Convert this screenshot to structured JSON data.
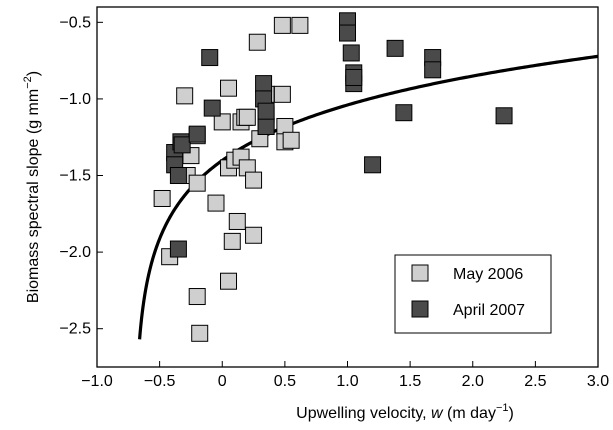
{
  "chart_data": {
    "type": "scatter",
    "xlabel": {
      "pre": "Upwelling velocity, ",
      "var": "w",
      "post": " (m day",
      "sup": "−1",
      "close": ")"
    },
    "ylabel": {
      "pre": "Biomass spectral slope (g mm",
      "sup": "−2",
      "close": ")"
    },
    "xlim": [
      -1.0,
      3.0
    ],
    "ylim": [
      -2.75,
      -0.4
    ],
    "x_ticks": [
      -1.0,
      -0.5,
      0.0,
      0.5,
      1.0,
      1.5,
      2.0,
      2.5,
      3.0
    ],
    "x_tick_labels": [
      "−1.0",
      "−0.5",
      "0",
      "0.5",
      "1.0",
      "1.5",
      "2.0",
      "2.5",
      "3.0"
    ],
    "y_ticks": [
      -2.5,
      -2.0,
      -1.5,
      -1.0,
      -0.5
    ],
    "y_tick_labels": [
      "−2.5",
      "−2.0",
      "−1.5",
      "−1.0",
      "−0.5"
    ],
    "grid": false,
    "legend_position": "bottom-right",
    "series": [
      {
        "name": "May 2006",
        "color": "#cfcfcf",
        "x": [
          -0.48,
          -0.42,
          -0.35,
          -0.3,
          -0.28,
          -0.25,
          -0.2,
          -0.2,
          -0.18,
          -0.2,
          -0.05,
          0.0,
          0.05,
          0.05,
          0.05,
          0.08,
          0.1,
          0.12,
          0.15,
          0.15,
          0.18,
          0.2,
          0.2,
          0.25,
          0.25,
          0.28,
          0.3,
          0.35,
          0.35,
          0.5,
          0.5,
          0.48,
          0.48,
          0.55,
          0.62
        ],
        "y": [
          -1.65,
          -2.03,
          -1.35,
          -0.98,
          -1.5,
          -1.37,
          -1.55,
          -2.29,
          -2.53,
          -1.24,
          -1.68,
          -1.15,
          -0.93,
          -1.45,
          -2.19,
          -1.93,
          -1.4,
          -1.8,
          -1.15,
          -1.38,
          -1.12,
          -1.12,
          -1.45,
          -1.53,
          -1.89,
          -0.63,
          -1.26,
          -1.18,
          -0.97,
          -1.18,
          -1.28,
          -0.97,
          -0.52,
          -1.27,
          -0.52
        ]
      },
      {
        "name": "April 2007",
        "color": "#4a4a4a",
        "x": [
          -0.38,
          -0.38,
          -0.35,
          -0.35,
          -0.33,
          -0.32,
          -0.2,
          -0.1,
          -0.08,
          0.33,
          0.33,
          0.35,
          0.35,
          0.35,
          1.0,
          1.0,
          1.03,
          1.05,
          1.05,
          1.05,
          1.2,
          1.38,
          1.45,
          1.68,
          1.68,
          2.25
        ],
        "y": [
          -1.35,
          -1.43,
          -1.5,
          -1.98,
          -1.28,
          -1.3,
          -1.23,
          -0.73,
          -1.06,
          -0.9,
          -1.0,
          -1.1,
          -1.18,
          -1.08,
          -0.49,
          -0.57,
          -0.7,
          -0.83,
          -0.9,
          -0.86,
          -1.43,
          -0.67,
          -1.09,
          -0.73,
          -0.81,
          -1.11
        ]
      }
    ],
    "fit_curve": {
      "description": "Logarithmic fit y = a + b*ln(w - c)",
      "a": -1.256,
      "b": 0.408,
      "c": -0.7,
      "x_from": -0.66,
      "x_to": 3.0
    }
  }
}
